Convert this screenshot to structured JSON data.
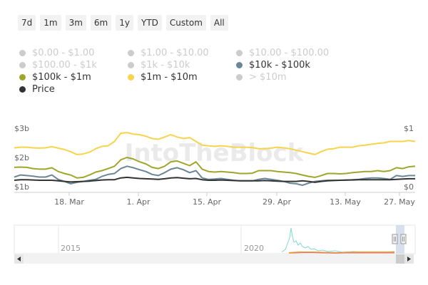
{
  "range_buttons": [
    "7d",
    "1m",
    "3m",
    "6m",
    "1y",
    "YTD",
    "Custom",
    "All"
  ],
  "legend": [
    {
      "label": "$0.00 - $1.00",
      "color": "#cccccc",
      "active": false
    },
    {
      "label": "$1.00 - $10.00",
      "color": "#cccccc",
      "active": false
    },
    {
      "label": "$10.00 - $100.00",
      "color": "#cccccc",
      "active": false
    },
    {
      "label": "$100.00 - $1k",
      "color": "#cccccc",
      "active": false
    },
    {
      "label": "$1k - $10k",
      "color": "#cccccc",
      "active": false
    },
    {
      "label": "$10k - $100k",
      "color": "#6a8797",
      "active": true
    },
    {
      "label": "$100k - $1m",
      "color": "#a0a52b",
      "active": true
    },
    {
      "label": "$1m - $10m",
      "color": "#f7d44c",
      "active": true
    },
    {
      "label": "> $10m",
      "color": "#cccccc",
      "active": false
    },
    {
      "label": "Price",
      "color": "#333333",
      "active": true
    }
  ],
  "chart_data": {
    "type": "line",
    "x_labels": [
      "18. Mar",
      "1. Apr",
      "15. Apr",
      "29. Apr",
      "13. May",
      "27. May"
    ],
    "y_left_ticks": [
      "$1b",
      "$2b",
      "$3b"
    ],
    "y_left_range": [
      1,
      3
    ],
    "y_right_ticks": [
      "$0",
      "$1"
    ],
    "series": [
      {
        "name": "$1m - $10m",
        "color": "#f7d44c",
        "values": [
          2.33,
          2.35,
          2.35,
          2.33,
          2.32,
          2.33,
          2.37,
          2.32,
          2.27,
          2.2,
          2.1,
          2.12,
          2.18,
          2.3,
          2.38,
          2.4,
          2.55,
          2.83,
          2.85,
          2.8,
          2.78,
          2.73,
          2.65,
          2.62,
          2.7,
          2.78,
          2.7,
          2.65,
          2.68,
          2.55,
          2.42,
          2.4,
          2.38,
          2.4,
          2.38,
          2.35,
          2.35,
          2.35,
          2.34,
          2.3,
          2.3,
          2.32,
          2.35,
          2.33,
          2.3,
          2.25,
          2.2,
          2.15,
          2.1,
          2.2,
          2.28,
          2.3,
          2.35,
          2.35,
          2.35,
          2.4,
          2.42,
          2.45,
          2.48,
          2.5,
          2.55,
          2.55,
          2.55,
          2.58,
          2.55
        ]
      },
      {
        "name": "$100k - $1m",
        "color": "#a0a52b",
        "values": [
          1.66,
          1.67,
          1.66,
          1.62,
          1.6,
          1.6,
          1.65,
          1.52,
          1.45,
          1.4,
          1.3,
          1.32,
          1.4,
          1.5,
          1.55,
          1.62,
          1.7,
          1.92,
          2.0,
          1.95,
          1.85,
          1.78,
          1.66,
          1.62,
          1.7,
          1.85,
          1.88,
          1.8,
          1.72,
          1.85,
          1.6,
          1.52,
          1.5,
          1.52,
          1.5,
          1.48,
          1.45,
          1.45,
          1.46,
          1.55,
          1.55,
          1.55,
          1.52,
          1.5,
          1.48,
          1.45,
          1.4,
          1.35,
          1.32,
          1.38,
          1.45,
          1.45,
          1.44,
          1.45,
          1.48,
          1.5,
          1.52,
          1.52,
          1.55,
          1.52,
          1.55,
          1.65,
          1.62,
          1.68,
          1.7
        ]
      },
      {
        "name": "$10k - $100k",
        "color": "#6a8797",
        "values": [
          1.33,
          1.4,
          1.38,
          1.36,
          1.33,
          1.33,
          1.4,
          1.25,
          1.18,
          1.1,
          1.15,
          1.18,
          1.22,
          1.25,
          1.35,
          1.42,
          1.45,
          1.62,
          1.7,
          1.65,
          1.58,
          1.52,
          1.42,
          1.38,
          1.48,
          1.6,
          1.65,
          1.58,
          1.48,
          1.55,
          1.3,
          1.25,
          1.26,
          1.28,
          1.25,
          1.22,
          1.2,
          1.2,
          1.2,
          1.25,
          1.28,
          1.25,
          1.22,
          1.18,
          1.12,
          1.1,
          1.05,
          1.12,
          1.18,
          1.2,
          1.22,
          1.22,
          1.22,
          1.22,
          1.24,
          1.25,
          1.28,
          1.3,
          1.3,
          1.28,
          1.25,
          1.38,
          1.35,
          1.38,
          1.38
        ]
      },
      {
        "name": "Price",
        "color": "#333333",
        "values": [
          1.22,
          1.24,
          1.24,
          1.23,
          1.22,
          1.22,
          1.22,
          1.2,
          1.18,
          1.16,
          1.17,
          1.18,
          1.19,
          1.21,
          1.23,
          1.24,
          1.24,
          1.3,
          1.32,
          1.3,
          1.28,
          1.27,
          1.26,
          1.25,
          1.27,
          1.3,
          1.31,
          1.29,
          1.27,
          1.28,
          1.24,
          1.22,
          1.22,
          1.23,
          1.22,
          1.21,
          1.2,
          1.2,
          1.2,
          1.2,
          1.21,
          1.2,
          1.19,
          1.18,
          1.18,
          1.18,
          1.2,
          1.18,
          1.15,
          1.18,
          1.2,
          1.21,
          1.22,
          1.23,
          1.23,
          1.24,
          1.24,
          1.24,
          1.24,
          1.24,
          1.24,
          1.25,
          1.26,
          1.27,
          1.27
        ]
      }
    ],
    "watermark": "IntoTheBlock",
    "navigator": {
      "labels": [
        "2015",
        "2020"
      ]
    }
  }
}
